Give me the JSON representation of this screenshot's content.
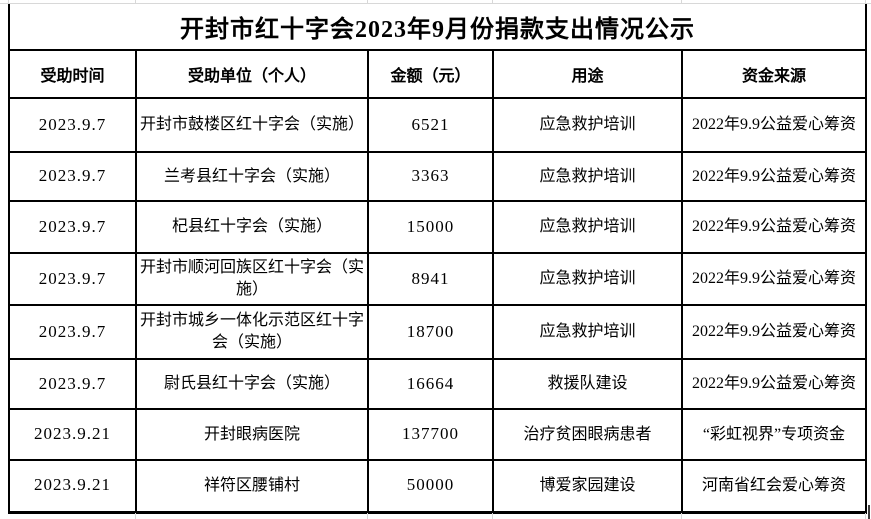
{
  "title": "开封市红十字会2023年9月份捐款支出情况公示",
  "table": {
    "headers": [
      "受助时间",
      "受助单位（个人）",
      "金额（元）",
      "用途",
      "资金来源"
    ],
    "rows": [
      [
        "2023.9.7",
        "开封市鼓楼区红十字会（实施）",
        "6521",
        "应急救护培训",
        "2022年9.9公益爱心筹资"
      ],
      [
        "2023.9.7",
        "兰考县红十字会（实施）",
        "3363",
        "应急救护培训",
        "2022年9.9公益爱心筹资"
      ],
      [
        "2023.9.7",
        "杞县红十字会（实施）",
        "15000",
        "应急救护培训",
        "2022年9.9公益爱心筹资"
      ],
      [
        "2023.9.7",
        "开封市顺河回族区红十字会（实施）",
        "8941",
        "应急救护培训",
        "2022年9.9公益爱心筹资"
      ],
      [
        "2023.9.7",
        "开封市城乡一体化示范区红十字会（实施）",
        "18700",
        "应急救护培训",
        "2022年9.9公益爱心筹资"
      ],
      [
        "2023.9.7",
        "尉氏县红十字会（实施）",
        "16664",
        "救援队建设",
        "2022年9.9公益爱心筹资"
      ],
      [
        "2023.9.21",
        "开封眼病医院",
        "137700",
        "治疗贫困眼病患者",
        "“彩虹视界”专项资金"
      ],
      [
        "2023.9.21",
        "祥符区腰铺村",
        "50000",
        "博爱家园建设",
        "河南省红会爱心筹资"
      ]
    ]
  },
  "colors": {
    "background": "#ffffff",
    "border": "#000000",
    "text": "#000000",
    "gridline": "#d8d8d8"
  }
}
